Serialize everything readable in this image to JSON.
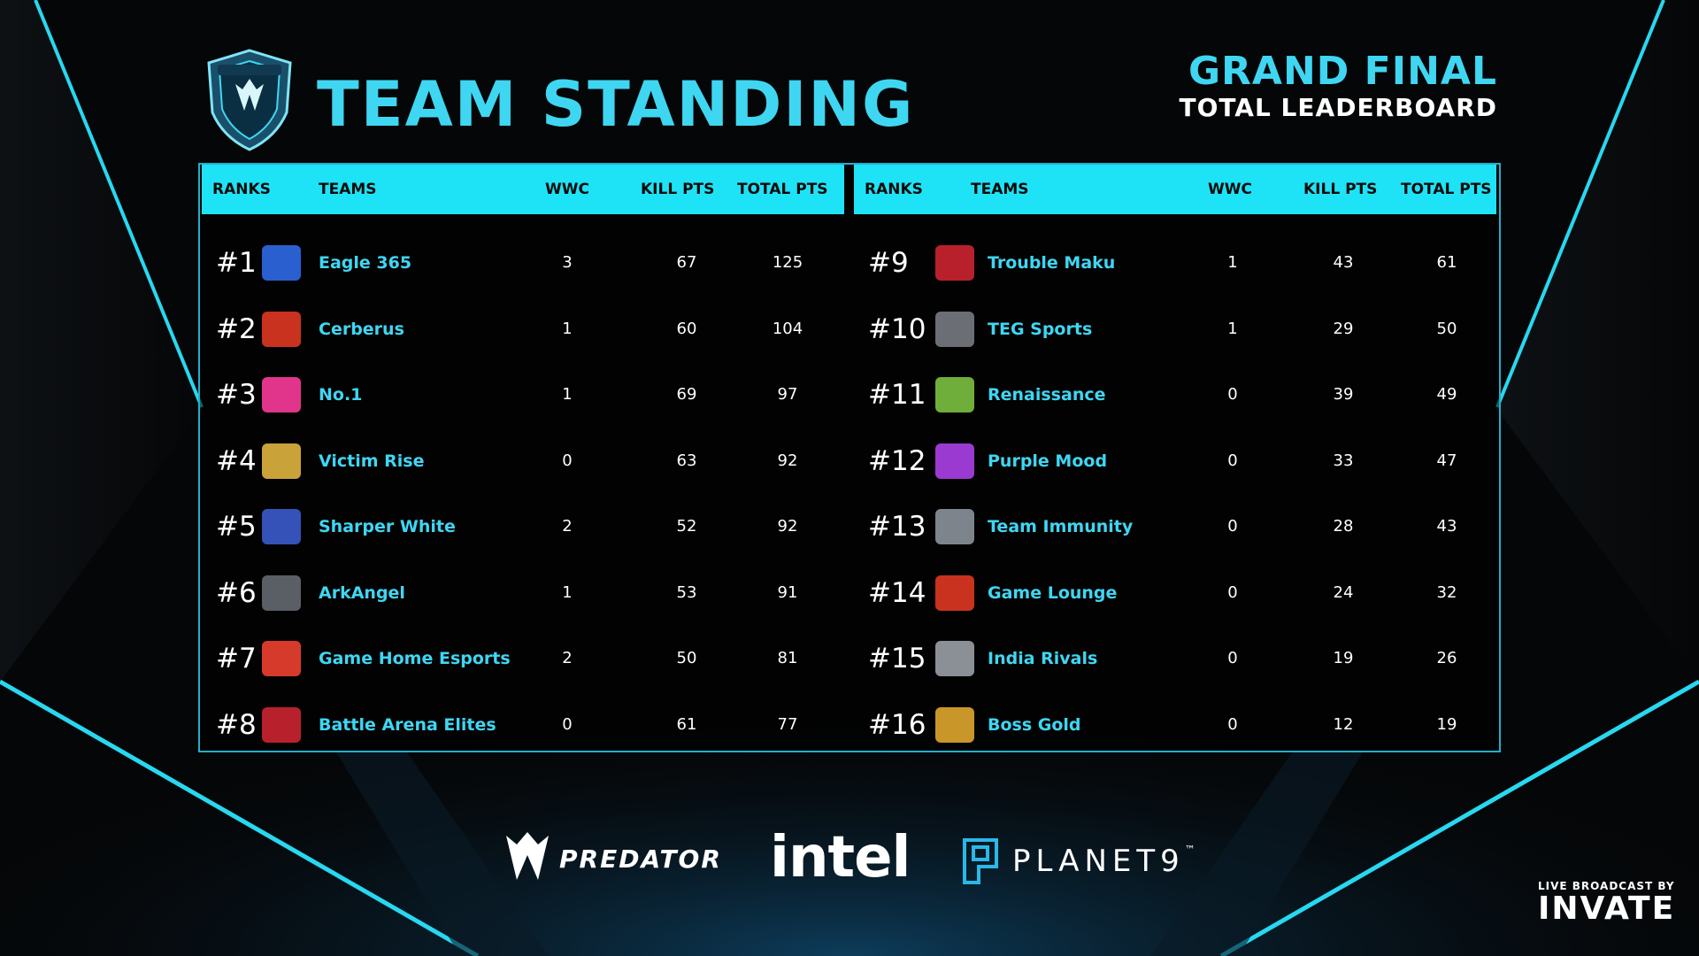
{
  "header": {
    "title": "TEAM STANDING",
    "right_title": "GRAND FINAL",
    "right_subtitle": "TOTAL LEADERBOARD",
    "league_logo_icon": "predator-league-shield-icon"
  },
  "table": {
    "headers": {
      "rank": "RANKS",
      "team": "TEAMS",
      "wwc": "WWC",
      "kill": "KILL PTS",
      "total": "TOTAL PTS"
    },
    "left": [
      {
        "rank": "#1",
        "team": "Eagle 365",
        "wwc": "3",
        "kill": "67",
        "total": "125",
        "color": "#2a5fd0",
        "icon": "eagle-365-logo"
      },
      {
        "rank": "#2",
        "team": "Cerberus",
        "wwc": "1",
        "kill": "60",
        "total": "104",
        "color": "#c8321e",
        "icon": "cerberus-logo"
      },
      {
        "rank": "#3",
        "team": "No.1",
        "wwc": "1",
        "kill": "69",
        "total": "97",
        "color": "#e0358a",
        "icon": "no1-logo"
      },
      {
        "rank": "#4",
        "team": "Victim Rise",
        "wwc": "0",
        "kill": "63",
        "total": "92",
        "color": "#c9a23a",
        "icon": "victim-rise-logo"
      },
      {
        "rank": "#5",
        "team": "Sharper White",
        "wwc": "2",
        "kill": "52",
        "total": "92",
        "color": "#3452b8",
        "icon": "sharper-white-logo"
      },
      {
        "rank": "#6",
        "team": "ArkAngel",
        "wwc": "1",
        "kill": "53",
        "total": "91",
        "color": "#5a5f66",
        "icon": "arkangel-logo"
      },
      {
        "rank": "#7",
        "team": "Game Home Esports",
        "wwc": "2",
        "kill": "50",
        "total": "81",
        "color": "#d63a2a",
        "icon": "game-home-logo"
      },
      {
        "rank": "#8",
        "team": "Battle Arena Elites",
        "wwc": "0",
        "kill": "61",
        "total": "77",
        "color": "#b8202c",
        "icon": "battle-arena-logo"
      }
    ],
    "right": [
      {
        "rank": "#9",
        "team": "Trouble Maku",
        "wwc": "1",
        "kill": "43",
        "total": "61",
        "color": "#b8202c",
        "icon": "trouble-maku-logo"
      },
      {
        "rank": "#10",
        "team": "TEG Sports",
        "wwc": "1",
        "kill": "29",
        "total": "50",
        "color": "#6b6f75",
        "icon": "teg-sports-logo"
      },
      {
        "rank": "#11",
        "team": "Renaissance",
        "wwc": "0",
        "kill": "39",
        "total": "49",
        "color": "#6fae3a",
        "icon": "renaissance-logo"
      },
      {
        "rank": "#12",
        "team": "Purple Mood",
        "wwc": "0",
        "kill": "33",
        "total": "47",
        "color": "#9b3ad0",
        "icon": "purple-mood-logo"
      },
      {
        "rank": "#13",
        "team": "Team Immunity",
        "wwc": "0",
        "kill": "28",
        "total": "43",
        "color": "#7d848c",
        "icon": "team-immunity-logo"
      },
      {
        "rank": "#14",
        "team": "Game Lounge",
        "wwc": "0",
        "kill": "24",
        "total": "32",
        "color": "#c8321e",
        "icon": "game-lounge-logo"
      },
      {
        "rank": "#15",
        "team": "India Rivals",
        "wwc": "0",
        "kill": "19",
        "total": "26",
        "color": "#8b9096",
        "icon": "india-rivals-logo"
      },
      {
        "rank": "#16",
        "team": "Boss Gold",
        "wwc": "0",
        "kill": "12",
        "total": "19",
        "color": "#c9962a",
        "icon": "boss-gold-logo"
      }
    ]
  },
  "sponsors": {
    "predator": "PREDATOR",
    "intel": "intel",
    "planet9": "PLANET9",
    "tm": "™"
  },
  "broadcast": {
    "label": "LIVE BROADCAST BY",
    "brand": "INVATE"
  },
  "colors": {
    "accent": "#3fd6f2",
    "header_bar": "#1ee3f6",
    "frame": "#1fb0cc"
  }
}
